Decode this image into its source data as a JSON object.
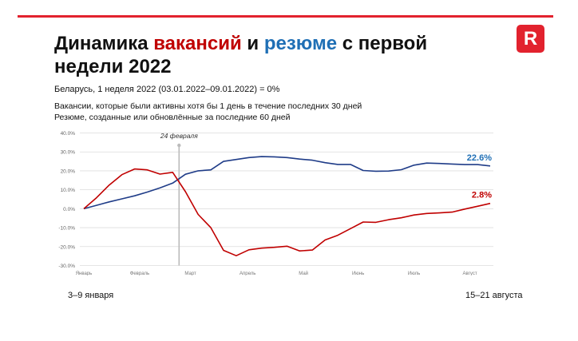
{
  "header": {
    "title_parts": [
      {
        "text": "Динамика ",
        "color": "#111111"
      },
      {
        "text": "вакансий",
        "color": "#c00000"
      },
      {
        "text": " и ",
        "color": "#111111"
      },
      {
        "text": "резюме",
        "color": "#1f6fb5"
      },
      {
        "text": " с первой недели 2022",
        "color": "#111111"
      }
    ],
    "logo_letter": "R",
    "logo_color": "#e2222e",
    "rule_color": "#e2222e"
  },
  "subtitle": "Беларусь, 1 неделя 2022 (03.01.2022–09.01.2022) = 0%",
  "notes": [
    "Вакансии, которые были активны хотя бы 1 день в течение последних 30 дней",
    "Резюме, созданные или обновлённые за последние 60 дней"
  ],
  "bottom_labels": {
    "left": "3–9 января",
    "right": "15–21 августа"
  },
  "chart_data": {
    "type": "line",
    "ylim": [
      -30,
      40
    ],
    "yticks": [
      -30,
      -20,
      -10,
      0,
      10,
      20,
      30,
      40
    ],
    "ytick_labels": [
      "-30.0%",
      "-20.0%",
      "-10.0%",
      "0.0%",
      "10.0%",
      "20.0%",
      "30.0%",
      "40.0%"
    ],
    "x_count": 33,
    "month_ticks": [
      {
        "label": "Январь",
        "index": 0
      },
      {
        "label": "Февраль",
        "index": 4.4
      },
      {
        "label": "Март",
        "index": 8.4
      },
      {
        "label": "Апрель",
        "index": 12.9
      },
      {
        "label": "Май",
        "index": 17.3
      },
      {
        "label": "Июнь",
        "index": 21.6
      },
      {
        "label": "Июль",
        "index": 26.0
      },
      {
        "label": "Август",
        "index": 30.4
      }
    ],
    "event_marker": {
      "label": "24 февраля",
      "index": 7.5
    },
    "grid": true,
    "series": [
      {
        "color": "#1f3c88",
        "end_label": "22.6%",
        "end_label_color": "#1f6fb5",
        "values": [
          0,
          1.8,
          3.6,
          5.2,
          6.8,
          8.8,
          11,
          13.5,
          18.2,
          20,
          20.5,
          25,
          26,
          27,
          27.5,
          27.4,
          27,
          26.2,
          25.6,
          24.3,
          23.4,
          23.4,
          20.2,
          19.8,
          19.9,
          20.6,
          23,
          24.1,
          23.9,
          23.6,
          23.3,
          23.3,
          22.6
        ]
      },
      {
        "color": "#c00000",
        "end_label": "2.8%",
        "end_label_color": "#c00000",
        "values": [
          0,
          5.8,
          12.5,
          18,
          21,
          20.5,
          18.3,
          19.2,
          9,
          -3,
          -10,
          -22,
          -24.8,
          -21.7,
          -20.8,
          -20.4,
          -19.8,
          -22.3,
          -21.8,
          -16.5,
          -14,
          -10.5,
          -7,
          -7.2,
          -5.8,
          -4.8,
          -3.3,
          -2.5,
          -2.2,
          -1.8,
          -0.2,
          1.3,
          2.8
        ]
      }
    ]
  }
}
